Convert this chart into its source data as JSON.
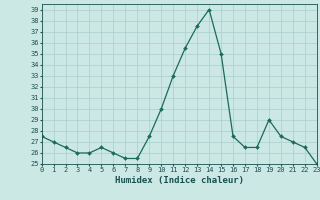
{
  "x": [
    0,
    1,
    2,
    3,
    4,
    5,
    6,
    7,
    8,
    9,
    10,
    11,
    12,
    13,
    14,
    15,
    16,
    17,
    18,
    19,
    20,
    21,
    22,
    23
  ],
  "y": [
    27.5,
    27.0,
    26.5,
    26.0,
    26.0,
    26.5,
    26.0,
    25.5,
    25.5,
    27.5,
    30.0,
    33.0,
    35.5,
    37.5,
    39.0,
    35.0,
    27.5,
    26.5,
    26.5,
    29.0,
    27.5,
    27.0,
    26.5,
    25.0
  ],
  "line_color": "#1a6b5a",
  "marker": "D",
  "marker_size": 2.0,
  "bg_color": "#cce8e5",
  "grid_color": "#aacfcc",
  "xlabel": "Humidex (Indice chaleur)",
  "xlim": [
    0,
    23
  ],
  "ylim": [
    25,
    39.5
  ],
  "yticks": [
    25,
    26,
    27,
    28,
    29,
    30,
    31,
    32,
    33,
    34,
    35,
    36,
    37,
    38,
    39
  ],
  "xticks": [
    0,
    1,
    2,
    3,
    4,
    5,
    6,
    7,
    8,
    9,
    10,
    11,
    12,
    13,
    14,
    15,
    16,
    17,
    18,
    19,
    20,
    21,
    22,
    23
  ],
  "tick_label_color": "#1a5050",
  "tick_fontsize": 5.0,
  "xlabel_fontsize": 6.5,
  "label_color": "#1a5050",
  "linewidth": 0.9
}
